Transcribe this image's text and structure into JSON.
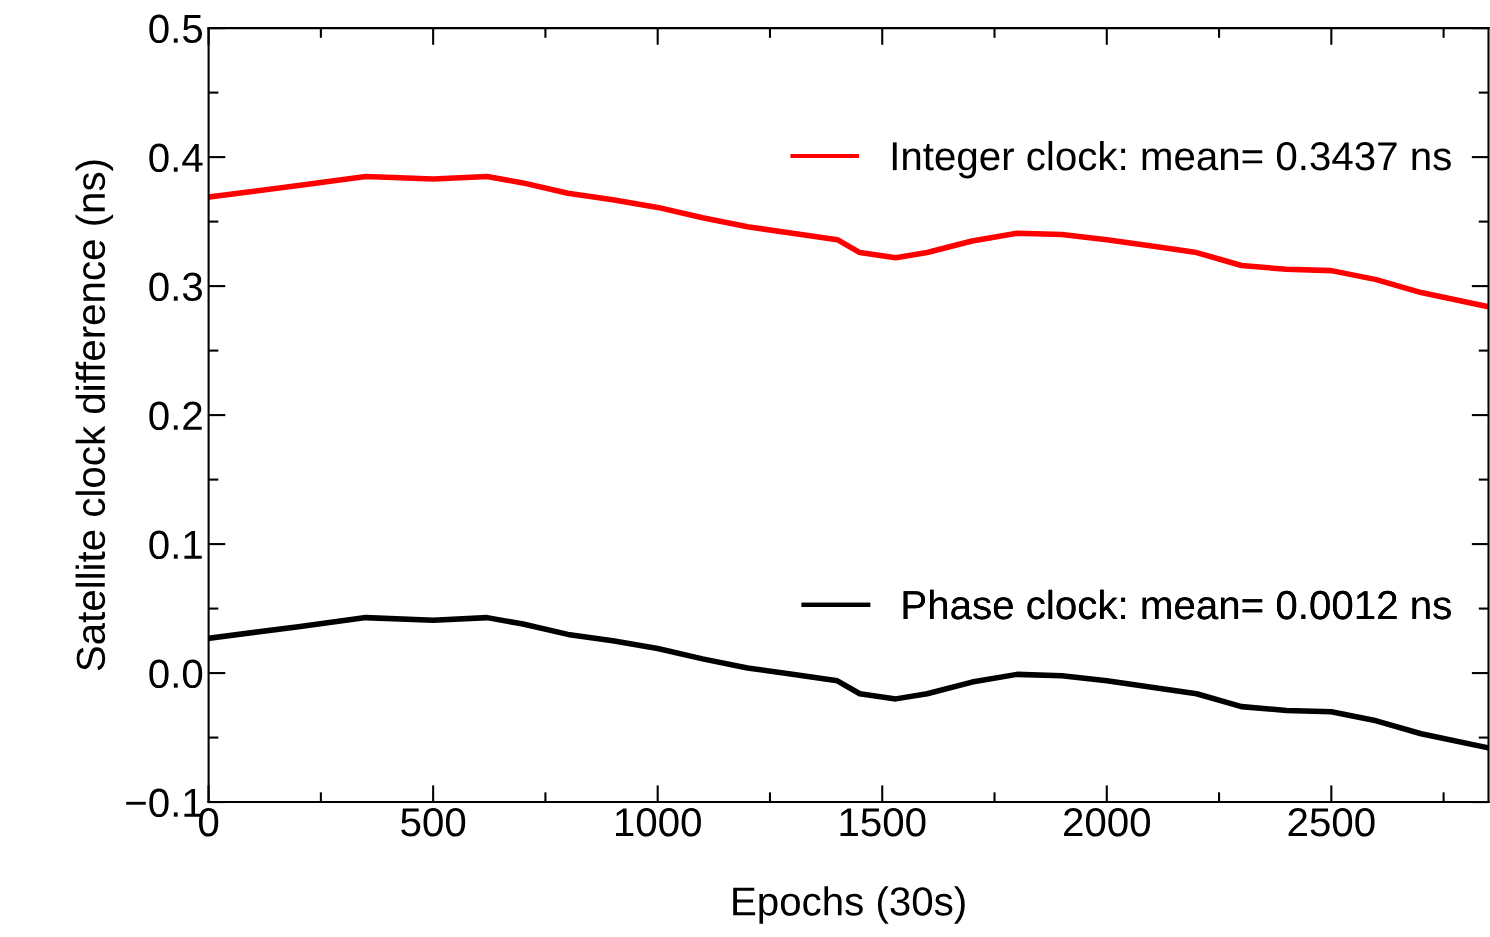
{
  "chart_data": {
    "type": "line",
    "xlabel": "Epochs (30s)",
    "ylabel": "Satellite clock difference (ns)",
    "x": [
      0,
      200,
      350,
      500,
      620,
      700,
      800,
      900,
      1000,
      1100,
      1200,
      1300,
      1400,
      1450,
      1530,
      1600,
      1700,
      1800,
      1900,
      2000,
      2100,
      2200,
      2300,
      2400,
      2500,
      2600,
      2700,
      2850
    ],
    "series": [
      {
        "name": "Integer clock: mean= 0.3437 ns",
        "color": "#ff0000",
        "values": [
          0.369,
          0.378,
          0.385,
          0.383,
          0.385,
          0.38,
          0.372,
          0.367,
          0.361,
          0.353,
          0.346,
          0.341,
          0.336,
          0.326,
          0.322,
          0.326,
          0.335,
          0.341,
          0.34,
          0.336,
          0.331,
          0.326,
          0.316,
          0.313,
          0.312,
          0.305,
          0.295,
          0.284
        ]
      },
      {
        "name": "Phase clock: mean= 0.0012 ns",
        "color": "#000000",
        "values": [
          0.027,
          0.036,
          0.043,
          0.041,
          0.043,
          0.038,
          0.03,
          0.025,
          0.019,
          0.011,
          0.004,
          -0.001,
          -0.006,
          -0.016,
          -0.02,
          -0.016,
          -0.007,
          -0.001,
          -0.002,
          -0.006,
          -0.011,
          -0.016,
          -0.026,
          -0.029,
          -0.03,
          -0.037,
          -0.047,
          -0.058
        ]
      }
    ],
    "xlim": [
      0,
      2850
    ],
    "xticks": [
      0,
      500,
      1000,
      1500,
      2000,
      2500
    ],
    "ylim": [
      -0.1,
      0.5
    ],
    "yticks": [
      {
        "value": -0.1,
        "label": "−0.1"
      },
      {
        "value": 0.0,
        "label": "0.0"
      },
      {
        "value": 0.1,
        "label": "0.1"
      },
      {
        "value": 0.2,
        "label": "0.2"
      },
      {
        "value": 0.3,
        "label": "0.3"
      },
      {
        "value": 0.4,
        "label": "0.4"
      },
      {
        "value": 0.5,
        "label": "0.5"
      }
    ],
    "grid": false,
    "legend": "right",
    "line_style": "solid",
    "marker": "none"
  }
}
